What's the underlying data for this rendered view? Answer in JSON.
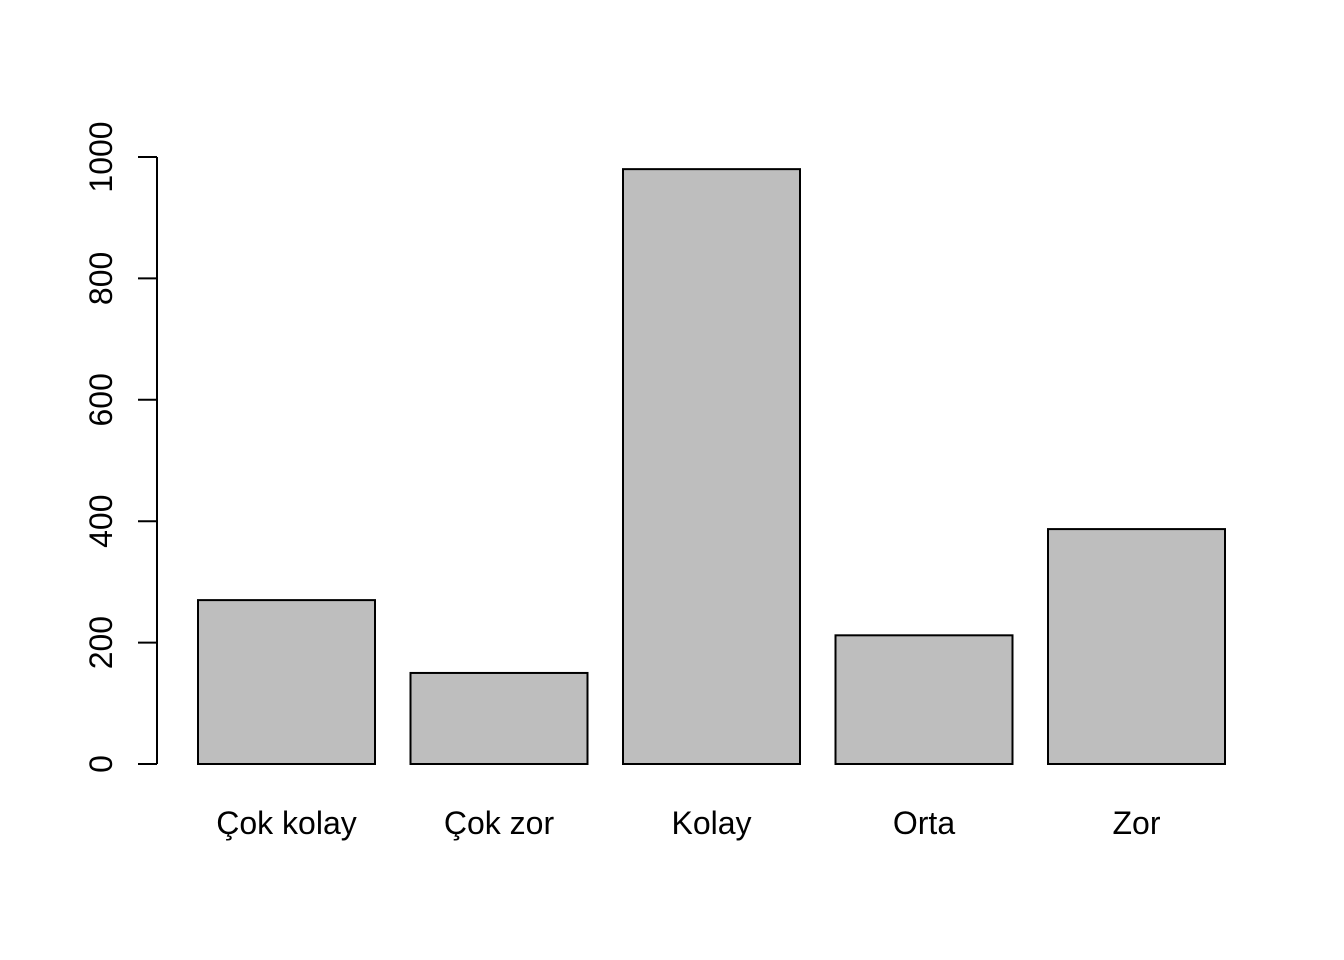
{
  "chart_data": {
    "type": "bar",
    "title": "",
    "xlabel": "",
    "ylabel": "",
    "categories": [
      "Çok kolay",
      "Çok zor",
      "Kolay",
      "Orta",
      "Zor"
    ],
    "values": [
      270,
      150,
      980,
      212,
      387
    ],
    "ylim": [
      0,
      1000
    ],
    "yticks": [
      0,
      200,
      400,
      600,
      800,
      1000
    ],
    "grid": false,
    "legend": "none",
    "colors": {
      "bar_fill": "#bebebe",
      "bar_stroke": "#000000",
      "axis": "#000000"
    }
  }
}
